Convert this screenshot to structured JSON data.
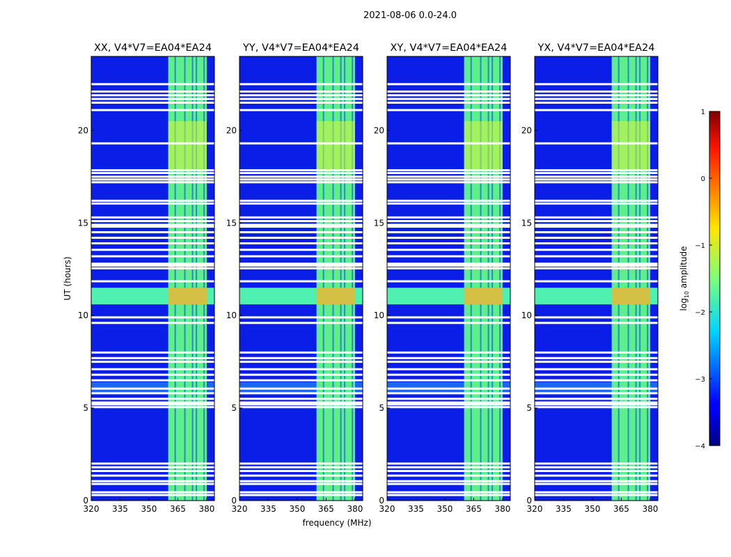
{
  "figure": {
    "suptitle": "2021-08-06 0.0-24.0"
  },
  "chart_data": {
    "type": "heatmap",
    "suptitle": "2021-08-06 0.0-24.0",
    "xlabel": "frequency (MHz)",
    "ylabel": "UT (hours)",
    "xlim": [
      320,
      384
    ],
    "ylim": [
      0,
      24
    ],
    "x_ticks": [
      320,
      335,
      350,
      365,
      380
    ],
    "y_ticks": [
      0,
      5,
      10,
      15,
      20
    ],
    "colormap": "jet",
    "colorbar": {
      "label": "log10 amplitude",
      "label_text": "log",
      "label_sub": "10",
      "label_rest": " amplitude",
      "range": [
        -4,
        1
      ],
      "ticks": [
        -4,
        -3,
        -2,
        -1,
        0,
        1
      ]
    },
    "colors": {
      "low": "#00007f",
      "mid": "#7fff7f",
      "high": "#7f0000",
      "flag": "#ffffff"
    },
    "bright_band_mhz": [
      360,
      380
    ],
    "band_channel_edges_mhz": [
      360,
      364,
      365,
      369,
      370,
      373,
      374,
      375,
      376,
      379
    ],
    "rfi_time_band_ut": [
      10.6,
      11.5
    ],
    "hot_time_band_ut": [
      5.8,
      6.4
    ],
    "flagged_ut_hours": [
      0.3,
      0.45,
      0.9,
      1.05,
      1.35,
      1.6,
      1.8,
      2.0,
      5.05,
      5.2,
      5.3,
      5.5,
      5.8,
      6.05,
      6.5,
      6.8,
      7.1,
      7.5,
      7.7,
      8.0,
      9.9,
      9.6,
      11.85,
      12.55,
      12.7,
      12.8,
      13.2,
      13.55,
      13.9,
      14.2,
      14.5,
      14.8,
      14.9,
      15.1,
      15.3,
      16.05,
      16.2,
      17.2,
      17.35,
      17.5,
      17.7,
      17.85,
      19.3,
      21.1,
      21.5,
      21.7,
      21.9,
      22.1,
      22.5
    ],
    "panels": [
      {
        "title": "XX, V4*V7=EA04*EA24",
        "pol": "XX",
        "baseline": "V4*V7=EA04*EA24"
      },
      {
        "title": "YY, V4*V7=EA04*EA24",
        "pol": "YY",
        "baseline": "V4*V7=EA04*EA24"
      },
      {
        "title": "XY, V4*V7=EA04*EA24",
        "pol": "XY",
        "baseline": "V4*V7=EA04*EA24"
      },
      {
        "title": "YX, V4*V7=EA04*EA24",
        "pol": "YX",
        "baseline": "V4*V7=EA04*EA24"
      }
    ]
  }
}
